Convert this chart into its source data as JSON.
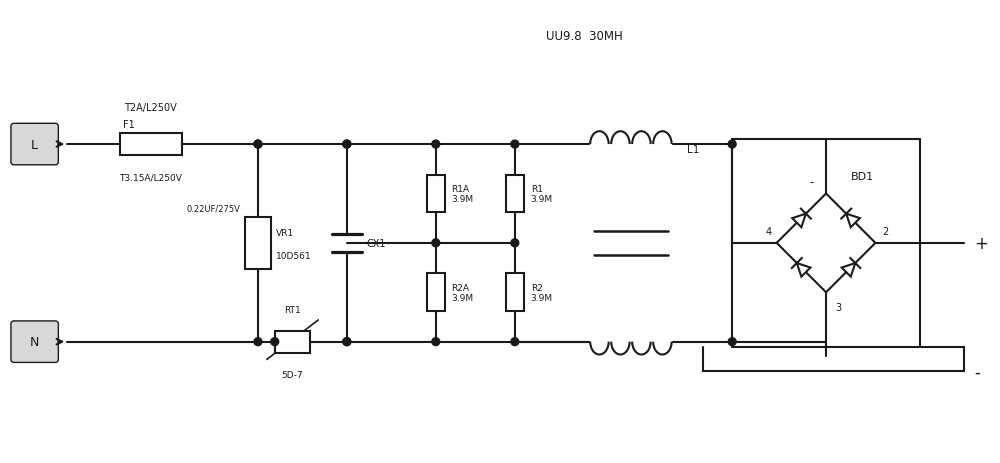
{
  "bg_color": "#ffffff",
  "line_color": "#1a1a1a",
  "text_color": "#1a1a1a",
  "lw": 1.5,
  "figsize": [
    10,
    4.64
  ],
  "dpi": 100,
  "labels": {
    "L_pin": "L",
    "N_pin": "N",
    "fuse_top": "T2A/L250V",
    "fuse_label": "F1",
    "fuse_bot": "T3.15A/L250V",
    "cx1_label": "0.22UF/275V",
    "cx1_name": "CX1",
    "vr1_name": "VR1",
    "vr1_val": "10D561",
    "rt1_label": "RT1",
    "rt1_val": "5D-7",
    "r1a_label": "R1A\n3.9M",
    "r2a_label": "R2A\n3.9M",
    "r1_label": "R1\n3.9M",
    "r2_label": "R2\n3.9M",
    "inductor_label": "UU9.8  30MH",
    "l1_label": "L1",
    "bd1_label": "BD1",
    "plus_label": "+",
    "minus_label": "-",
    "node4": "4",
    "node2": "2",
    "node3": "3",
    "node_minus": "-"
  }
}
